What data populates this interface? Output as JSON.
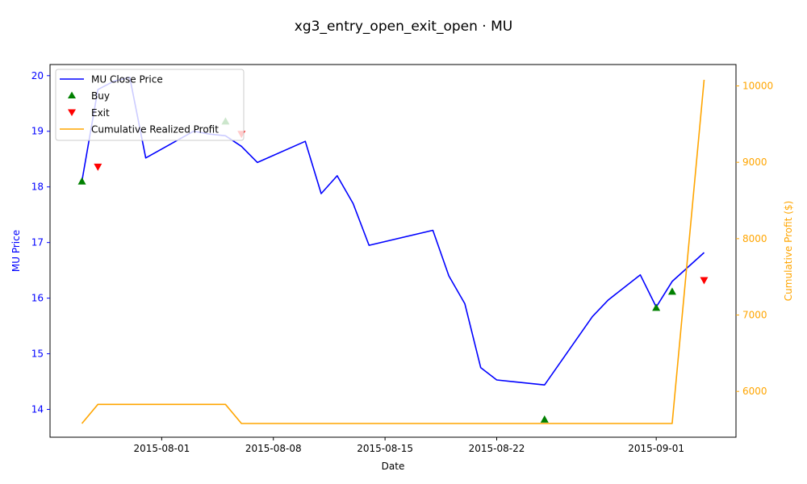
{
  "chart_data": {
    "type": "line",
    "title": "xg3_entry_open_exit_open · MU",
    "xlabel": "Date",
    "ylabel_left": "MU Price",
    "ylabel_right": "Cumulative Profit ($)",
    "left_axis_color": "#0000ff",
    "right_axis_color": "#ffa500",
    "x_ticks": [
      "2015-08-01",
      "2015-08-08",
      "2015-08-15",
      "2015-08-22",
      "2015-09-01"
    ],
    "left_ylim": [
      13.5,
      20.2
    ],
    "left_ticks": [
      "14",
      "15",
      "16",
      "17",
      "18",
      "19",
      "20"
    ],
    "right_ylim": [
      5400,
      10280
    ],
    "right_ticks": [
      "6000",
      "7000",
      "8000",
      "9000",
      "10000"
    ],
    "legend_position": "upper-left",
    "legend": [
      {
        "name": "MU Close Price",
        "kind": "line",
        "color": "#0000ff"
      },
      {
        "name": "Buy",
        "kind": "triangle-up",
        "color": "#008000"
      },
      {
        "name": "Exit",
        "kind": "triangle-down",
        "color": "#ff0000"
      },
      {
        "name": "Cumulative Realized Profit",
        "kind": "line",
        "color": "#ffa500"
      }
    ],
    "price_series": {
      "name": "MU Close Price",
      "color": "#0000ff",
      "points": [
        [
          "2015-07-27",
          18.1
        ],
        [
          "2015-07-28",
          19.75
        ],
        [
          "2015-07-29",
          19.9
        ],
        [
          "2015-07-30",
          19.97
        ],
        [
          "2015-07-31",
          18.52
        ],
        [
          "2015-08-03",
          19.0
        ],
        [
          "2015-08-04",
          18.95
        ],
        [
          "2015-08-05",
          18.92
        ],
        [
          "2015-08-06",
          18.73
        ],
        [
          "2015-08-07",
          18.44
        ],
        [
          "2015-08-10",
          18.82
        ],
        [
          "2015-08-11",
          17.88
        ],
        [
          "2015-08-12",
          18.2
        ],
        [
          "2015-08-13",
          17.7
        ],
        [
          "2015-08-14",
          16.95
        ],
        [
          "2015-08-18",
          17.22
        ],
        [
          "2015-08-19",
          16.4
        ],
        [
          "2015-08-20",
          15.9
        ],
        [
          "2015-08-21",
          14.75
        ],
        [
          "2015-08-22",
          14.53
        ],
        [
          "2015-08-25",
          14.44
        ],
        [
          "2015-08-28",
          15.67
        ],
        [
          "2015-08-29",
          15.97
        ],
        [
          "2015-08-31",
          16.42
        ],
        [
          "2015-09-01",
          15.84
        ],
        [
          "2015-09-02",
          16.3
        ],
        [
          "2015-09-04",
          16.82
        ]
      ]
    },
    "buy_markers": {
      "name": "Buy",
      "color": "#008000",
      "points": [
        [
          "2015-07-27",
          18.1
        ],
        [
          "2015-08-05",
          19.18
        ],
        [
          "2015-08-25",
          13.82
        ],
        [
          "2015-09-01",
          15.83
        ],
        [
          "2015-09-02",
          16.12
        ]
      ]
    },
    "exit_markers": {
      "name": "Exit",
      "color": "#ff0000",
      "points": [
        [
          "2015-07-28",
          18.36
        ],
        [
          "2015-08-06",
          18.95
        ],
        [
          "2015-09-04",
          16.32
        ]
      ]
    },
    "profit_series": {
      "name": "Cumulative Realized Profit",
      "color": "#ffa500",
      "points": [
        [
          "2015-07-27",
          5580
        ],
        [
          "2015-07-28",
          5830
        ],
        [
          "2015-08-05",
          5830
        ],
        [
          "2015-08-06",
          5580
        ],
        [
          "2015-09-02",
          5580
        ],
        [
          "2015-09-04",
          10080
        ]
      ]
    }
  }
}
